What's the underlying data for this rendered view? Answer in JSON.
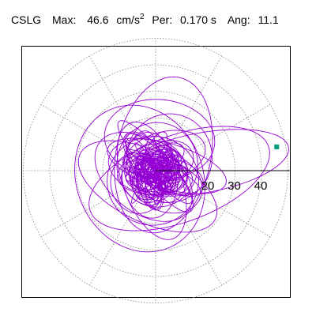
{
  "header": {
    "station": "CSLG",
    "max_label": "Max:",
    "max_value": "46.6",
    "max_unit": "cm/s",
    "max_unit_exp": "2",
    "period_label": "Per:",
    "period_value": "0.170 s",
    "angle_label": "Ang:",
    "angle_value": "11.1"
  },
  "chart_data": {
    "type": "polar-orbit",
    "title": "",
    "units": "cm/s2",
    "max_radius": 46.6,
    "angle_deg": 11.1,
    "rings": [
      10,
      20,
      30,
      40,
      50
    ],
    "ring_labels": [
      "20",
      "30",
      "40"
    ],
    "spokes_deg": [
      0,
      30,
      60,
      90,
      120,
      150,
      180,
      210,
      240,
      270,
      300,
      330
    ],
    "trace_color": "#9400d3",
    "marker_color": "#00a080",
    "grid": true,
    "axis": "horizontal-right"
  }
}
